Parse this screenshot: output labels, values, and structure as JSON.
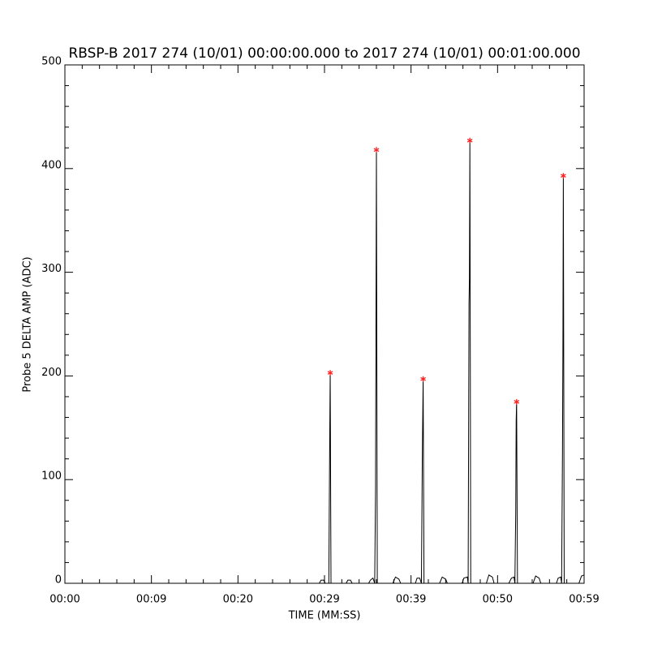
{
  "chart_data": {
    "type": "line",
    "title": "RBSP-B 2017 274 (10/01) 00:00:00.000 to 2017 274 (10/01) 00:01:00.000",
    "x_label": "TIME (MM:SS)",
    "y_label": "Probe 5 DELTA AMP (ADC)",
    "xlim": [
      0,
      60
    ],
    "ylim": [
      0,
      500
    ],
    "xticks": [
      {
        "value": 0,
        "label": "00:00"
      },
      {
        "value": 10,
        "label": "00:09"
      },
      {
        "value": 20,
        "label": "00:20"
      },
      {
        "value": 30,
        "label": "00:29"
      },
      {
        "value": 40,
        "label": "00:39"
      },
      {
        "value": 50,
        "label": "00:50"
      },
      {
        "value": 60,
        "label": "00:59"
      }
    ],
    "yticks": [
      0,
      100,
      200,
      300,
      400,
      500
    ],
    "xminor": 5,
    "yminor": 5,
    "color": "#000000",
    "x": [
      0,
      29.4,
      29.6,
      29.9,
      30.1,
      30.5,
      30.6,
      30.66,
      30.75,
      32.5,
      32.7,
      33.0,
      33.2,
      35.1,
      35.3,
      35.6,
      35.8,
      35.9,
      35.95,
      36.0,
      36.1,
      37.9,
      38.2,
      38.6,
      38.8,
      40.5,
      40.7,
      41.0,
      41.2,
      41.3,
      41.4,
      41.5,
      43.3,
      43.6,
      44.0,
      44.2,
      45.9,
      46.1,
      46.5,
      46.6,
      46.7,
      46.75,
      46.8,
      46.9,
      48.7,
      49.0,
      49.4,
      49.6,
      51.3,
      51.6,
      51.9,
      52.0,
      52.1,
      52.15,
      52.2,
      52.3,
      54.1,
      54.4,
      54.8,
      55.0,
      56.8,
      57.0,
      57.3,
      57.4,
      57.5,
      57.55,
      57.6,
      57.7,
      59.4,
      59.7,
      60
    ],
    "values": [
      0,
      0,
      3,
      3,
      0,
      0,
      135,
      203,
      0,
      0,
      3,
      3,
      0,
      0,
      3,
      5,
      0,
      90,
      255,
      418,
      0,
      0,
      6,
      4,
      0,
      0,
      5,
      5,
      0,
      118,
      197,
      0,
      0,
      6,
      4,
      0,
      0,
      5,
      6,
      0,
      270,
      295,
      427,
      0,
      0,
      8,
      6,
      0,
      0,
      5,
      6,
      0,
      70,
      157,
      175,
      0,
      0,
      7,
      5,
      0,
      0,
      5,
      6,
      0,
      125,
      225,
      393,
      0,
      0,
      7,
      8
    ],
    "peaks": {
      "color": "#ff2020",
      "x": [
        30.66,
        36.0,
        41.4,
        46.8,
        52.2,
        57.6
      ],
      "values": [
        203,
        418,
        197,
        427,
        175,
        393
      ]
    }
  }
}
